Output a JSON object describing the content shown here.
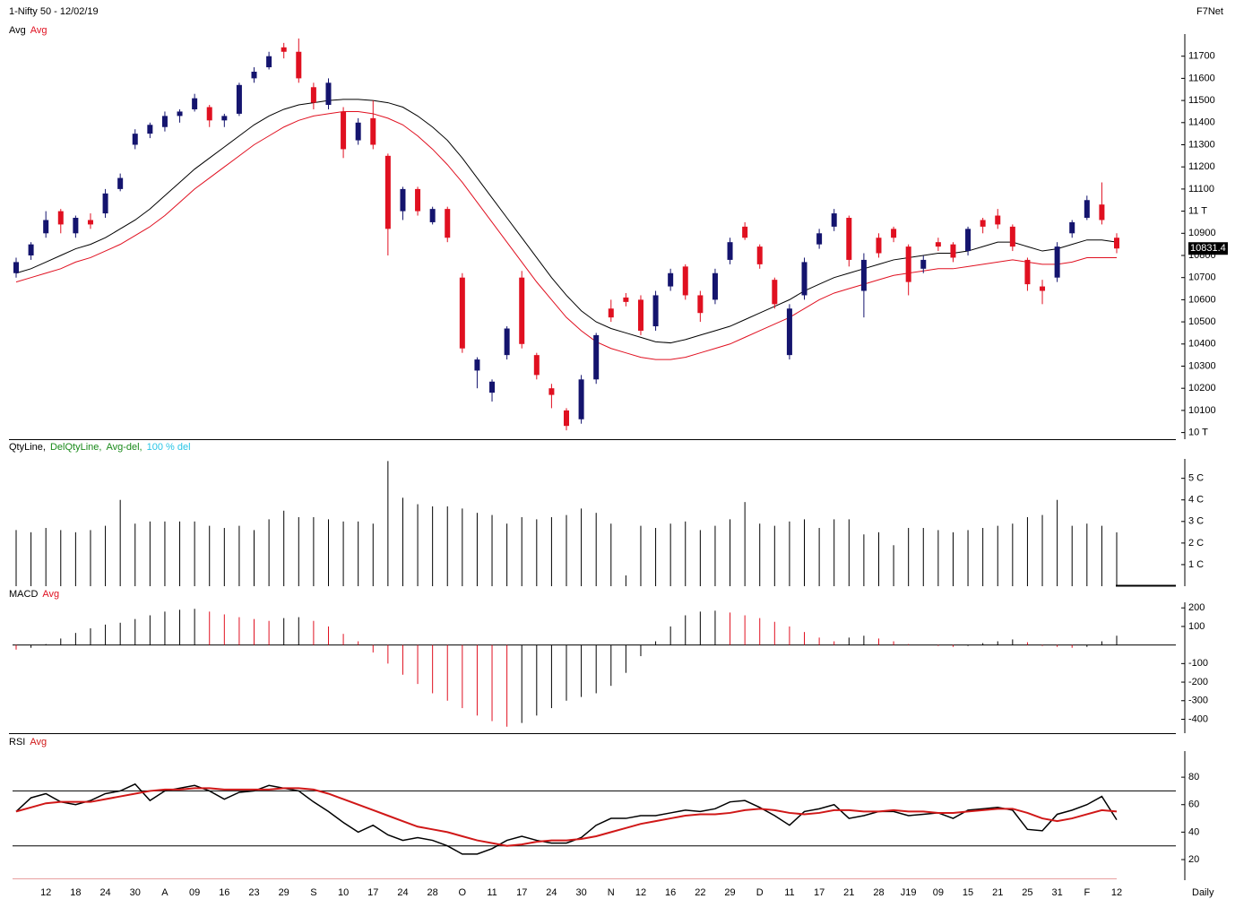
{
  "header": {
    "source": "F7Net"
  },
  "footer": {
    "period": "Daily"
  },
  "chart_data": [
    {
      "type": "candlestick",
      "title": "1-Nifty 50 - 12/02/19",
      "up_color": "#14146e",
      "down_color": "#e01020",
      "candles": [
        [
          10720,
          10790,
          10700,
          10770
        ],
        [
          10800,
          10860,
          10780,
          10850
        ],
        [
          10900,
          11000,
          10880,
          10960
        ],
        [
          11000,
          11010,
          10900,
          10940
        ],
        [
          10900,
          10980,
          10880,
          10970
        ],
        [
          10960,
          10990,
          10920,
          10940
        ],
        [
          10990,
          11100,
          10970,
          11080
        ],
        [
          11100,
          11170,
          11090,
          11150
        ],
        [
          11300,
          11370,
          11280,
          11350
        ],
        [
          11350,
          11400,
          11330,
          11390
        ],
        [
          11380,
          11450,
          11360,
          11430
        ],
        [
          11430,
          11460,
          11400,
          11450
        ],
        [
          11460,
          11530,
          11450,
          11510
        ],
        [
          11470,
          11480,
          11380,
          11410
        ],
        [
          11410,
          11440,
          11380,
          11430
        ],
        [
          11440,
          11580,
          11430,
          11570
        ],
        [
          11600,
          11650,
          11580,
          11630
        ],
        [
          11650,
          11720,
          11640,
          11700
        ],
        [
          11740,
          11760,
          11690,
          11720
        ],
        [
          11720,
          11780,
          11580,
          11600
        ],
        [
          11560,
          11580,
          11460,
          11490
        ],
        [
          11480,
          11600,
          11460,
          11580
        ],
        [
          11450,
          11470,
          11240,
          11280
        ],
        [
          11320,
          11420,
          11300,
          11400
        ],
        [
          11420,
          11500,
          11280,
          11300
        ],
        [
          11250,
          11260,
          10800,
          10920
        ],
        [
          11000,
          11110,
          10960,
          11100
        ],
        [
          11100,
          11110,
          10980,
          11000
        ],
        [
          10950,
          11020,
          10940,
          11010
        ],
        [
          11010,
          11020,
          10860,
          10880
        ],
        [
          10700,
          10720,
          10360,
          10380
        ],
        [
          10280,
          10340,
          10200,
          10330
        ],
        [
          10180,
          10240,
          10140,
          10230
        ],
        [
          10350,
          10480,
          10330,
          10470
        ],
        [
          10700,
          10730,
          10380,
          10400
        ],
        [
          10350,
          10360,
          10240,
          10260
        ],
        [
          10200,
          10220,
          10110,
          10170
        ],
        [
          10100,
          10110,
          10010,
          10030
        ],
        [
          10060,
          10260,
          10040,
          10240
        ],
        [
          10240,
          10450,
          10220,
          10440
        ],
        [
          10560,
          10600,
          10500,
          10520
        ],
        [
          10610,
          10630,
          10570,
          10590
        ],
        [
          10600,
          10620,
          10440,
          10460
        ],
        [
          10480,
          10640,
          10460,
          10620
        ],
        [
          10660,
          10740,
          10640,
          10720
        ],
        [
          10750,
          10760,
          10600,
          10620
        ],
        [
          10620,
          10640,
          10500,
          10540
        ],
        [
          10600,
          10740,
          10580,
          10720
        ],
        [
          10780,
          10880,
          10760,
          10860
        ],
        [
          10930,
          10950,
          10870,
          10880
        ],
        [
          10840,
          10850,
          10740,
          10760
        ],
        [
          10690,
          10700,
          10560,
          10580
        ],
        [
          10350,
          10580,
          10330,
          10560
        ],
        [
          10620,
          10790,
          10600,
          10770
        ],
        [
          10850,
          10920,
          10830,
          10900
        ],
        [
          10930,
          11010,
          10910,
          10990
        ],
        [
          10970,
          10980,
          10750,
          10780
        ],
        [
          10640,
          10810,
          10520,
          10780
        ],
        [
          10880,
          10900,
          10790,
          10810
        ],
        [
          10920,
          10930,
          10860,
          10880
        ],
        [
          10840,
          10850,
          10620,
          10680
        ],
        [
          10740,
          10800,
          10720,
          10780
        ],
        [
          10860,
          10880,
          10820,
          10840
        ],
        [
          10850,
          10860,
          10770,
          10790
        ],
        [
          10820,
          10930,
          10800,
          10920
        ],
        [
          10960,
          10970,
          10900,
          10930
        ],
        [
          10980,
          11010,
          10920,
          10940
        ],
        [
          10930,
          10940,
          10820,
          10840
        ],
        [
          10780,
          10790,
          10640,
          10670
        ],
        [
          10660,
          10690,
          10580,
          10640
        ],
        [
          10700,
          10860,
          10680,
          10840
        ],
        [
          10900,
          10960,
          10880,
          10950
        ],
        [
          10970,
          11070,
          10960,
          11050
        ],
        [
          11030,
          11130,
          10940,
          10960
        ],
        [
          10880,
          10900,
          10810,
          10831.4
        ]
      ],
      "series": [
        {
          "name": "Avg",
          "color": "#000000",
          "values": [
            10720,
            10740,
            10770,
            10800,
            10830,
            10850,
            10880,
            10920,
            10960,
            11010,
            11070,
            11130,
            11190,
            11240,
            11290,
            11340,
            11390,
            11430,
            11460,
            11480,
            11490,
            11500,
            11505,
            11505,
            11500,
            11490,
            11470,
            11430,
            11380,
            11320,
            11240,
            11150,
            11060,
            10970,
            10880,
            10790,
            10700,
            10620,
            10550,
            10500,
            10470,
            10450,
            10430,
            10410,
            10405,
            10420,
            10440,
            10460,
            10480,
            10510,
            10540,
            10570,
            10600,
            10640,
            10670,
            10700,
            10720,
            10740,
            10760,
            10780,
            10790,
            10800,
            10810,
            10810,
            10820,
            10840,
            10860,
            10860,
            10840,
            10820,
            10830,
            10850,
            10870,
            10870,
            10860
          ]
        },
        {
          "name": "Avg",
          "color": "#e01020",
          "values": [
            10680,
            10700,
            10720,
            10740,
            10770,
            10790,
            10820,
            10850,
            10890,
            10930,
            10980,
            11040,
            11100,
            11150,
            11200,
            11250,
            11300,
            11340,
            11380,
            11410,
            11430,
            11440,
            11450,
            11450,
            11440,
            11420,
            11390,
            11340,
            11280,
            11210,
            11130,
            11040,
            10950,
            10860,
            10770,
            10680,
            10600,
            10520,
            10460,
            10410,
            10380,
            10360,
            10340,
            10330,
            10330,
            10340,
            10360,
            10380,
            10400,
            10430,
            10460,
            10490,
            10520,
            10560,
            10600,
            10630,
            10650,
            10670,
            10690,
            10710,
            10720,
            10730,
            10740,
            10740,
            10750,
            10760,
            10770,
            10780,
            10770,
            10760,
            10760,
            10770,
            10790,
            10790,
            10790
          ]
        }
      ],
      "last_value": 10831.4,
      "ylim": [
        9970,
        11800
      ],
      "yticks": [
        {
          "value": 10000,
          "label": "10 T"
        },
        10100,
        10200,
        10300,
        10400,
        10500,
        10600,
        10700,
        10800,
        10900,
        {
          "value": 11000,
          "label": "11 T"
        },
        11100,
        11200,
        11300,
        11400,
        11500,
        11600,
        11700
      ]
    },
    {
      "type": "bar",
      "color": "#000000",
      "legend": [
        {
          "text": "QtyLine,",
          "color": "#000000"
        },
        {
          "text": "DelQtyLine,",
          "color": "#1a8a1a"
        },
        {
          "text": "Avg-del,",
          "color": "#1a8a1a"
        },
        {
          "text": "100 % del",
          "color": "#29c5e6"
        }
      ],
      "values": [
        2.6,
        2.5,
        2.7,
        2.6,
        2.5,
        2.6,
        2.8,
        4,
        2.9,
        3.0,
        3.0,
        3.0,
        3.0,
        2.8,
        2.7,
        2.8,
        2.6,
        3.1,
        3.5,
        3.2,
        3.2,
        3.1,
        3.0,
        3.0,
        2.9,
        5.8,
        4.1,
        3.8,
        3.7,
        3.7,
        3.6,
        3.4,
        3.3,
        2.9,
        3.2,
        3.1,
        3.2,
        3.3,
        3.6,
        3.4,
        2.9,
        0.5,
        2.8,
        2.7,
        2.9,
        3.0,
        2.6,
        2.8,
        3.1,
        3.9,
        2.9,
        2.8,
        3.0,
        3.1,
        2.7,
        3.1,
        3.1,
        2.4,
        2.5,
        1.9,
        2.7,
        2.7,
        2.6,
        2.5,
        2.6,
        2.7,
        2.8,
        2.9,
        3.2,
        3.3,
        4,
        2.8,
        2.9,
        2.8,
        2.5
      ],
      "ylim": [
        0,
        5.9
      ],
      "yticks": [
        {
          "value": 1,
          "label": "1 C"
        },
        {
          "value": 2,
          "label": "2 C"
        },
        {
          "value": 3,
          "label": "3 C"
        },
        {
          "value": 4,
          "label": "4 C"
        },
        {
          "value": 5,
          "label": "5 C"
        }
      ]
    },
    {
      "type": "histogram",
      "up_color": "#000000",
      "down_color": "#e01020",
      "legend": [
        {
          "text": "MACD",
          "color": "#000000"
        },
        {
          "text": "Avg",
          "color": "#e01020"
        }
      ],
      "values": [
        -25,
        -15,
        5,
        35,
        65,
        90,
        110,
        120,
        140,
        160,
        180,
        190,
        195,
        180,
        165,
        150,
        140,
        130,
        145,
        150,
        130,
        100,
        60,
        20,
        -40,
        -100,
        -160,
        -210,
        -260,
        -300,
        -340,
        -380,
        -410,
        -440,
        -420,
        -380,
        -340,
        -300,
        -280,
        -260,
        -220,
        -150,
        -60,
        20,
        100,
        160,
        180,
        185,
        175,
        160,
        145,
        125,
        100,
        70,
        40,
        20,
        40,
        50,
        35,
        20,
        5,
        0,
        -5,
        -10,
        -5,
        10,
        20,
        30,
        15,
        -5,
        -10,
        -15,
        -10,
        20,
        50
      ],
      "ylim": [
        -475,
        230
      ],
      "yticks": [
        200,
        100,
        -100,
        -200,
        -300,
        -400
      ],
      "hlines": [
        0
      ]
    },
    {
      "type": "line",
      "categories": [
        null,
        null,
        "12",
        null,
        "18",
        null,
        "24",
        null,
        "30",
        null,
        "A",
        null,
        "09",
        null,
        "16",
        null,
        "23",
        null,
        "29",
        null,
        "S",
        null,
        "10",
        null,
        "17",
        null,
        "24",
        null,
        "28",
        null,
        "O",
        null,
        "11",
        null,
        "17",
        null,
        "24",
        null,
        "30",
        null,
        "N",
        null,
        "12",
        null,
        "16",
        null,
        "22",
        null,
        "29",
        null,
        "D",
        null,
        "11",
        null,
        "17",
        null,
        "21",
        null,
        "28",
        null,
        "J19",
        null,
        "09",
        null,
        "15",
        null,
        "21",
        null,
        "25",
        null,
        "31",
        null,
        "F",
        null,
        "12"
      ],
      "series": [
        {
          "name": "RSI",
          "color": "#000000",
          "values": [
            55,
            65,
            68,
            62,
            60,
            63,
            68,
            70,
            75,
            63,
            70,
            72,
            74,
            70,
            64,
            69,
            70,
            74,
            72,
            70,
            62,
            55,
            47,
            40,
            45,
            38,
            34,
            36,
            34,
            30,
            24,
            24,
            28,
            34,
            37,
            34,
            32,
            32,
            36,
            45,
            50,
            50,
            52,
            52,
            54,
            56,
            55,
            57,
            62,
            63,
            58,
            52,
            45,
            55,
            57,
            60,
            50,
            52,
            55,
            55,
            52,
            53,
            54,
            50,
            56,
            57,
            58,
            56,
            42,
            41,
            53,
            56,
            60,
            66,
            49
          ]
        },
        {
          "name": "Avg",
          "color": "#d01818",
          "values": [
            55,
            58,
            61,
            62,
            62,
            62,
            64,
            66,
            68,
            70,
            71,
            71,
            72,
            72,
            71,
            71,
            71,
            71,
            72,
            72,
            71,
            68,
            64,
            60,
            56,
            52,
            48,
            44,
            42,
            40,
            37,
            34,
            32,
            30,
            31,
            33,
            34,
            34,
            35,
            37,
            40,
            43,
            46,
            48,
            50,
            52,
            53,
            53,
            54,
            56,
            57,
            56,
            54,
            53,
            54,
            56,
            56,
            55,
            55,
            56,
            55,
            55,
            54,
            54,
            55,
            56,
            57,
            57,
            54,
            50,
            48,
            50,
            53,
            56,
            55
          ]
        }
      ],
      "ylim": [
        5,
        99
      ],
      "yticks": [
        20,
        40,
        60,
        80
      ],
      "hlines": [
        70,
        30
      ]
    }
  ]
}
